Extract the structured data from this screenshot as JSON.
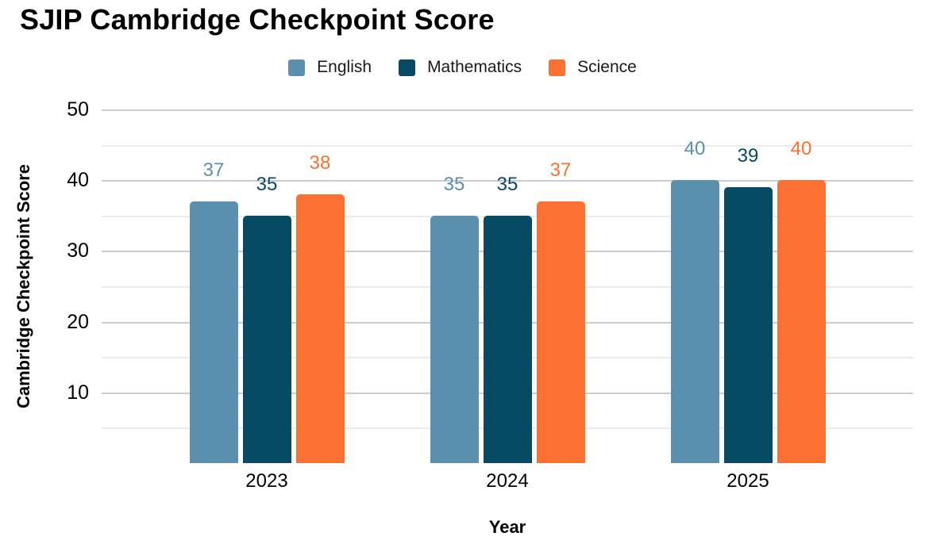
{
  "chart_data": {
    "type": "bar",
    "title": "SJIP Cambridge Checkpoint Score",
    "xlabel": "Year",
    "ylabel": "Cambridge Checkpoint Score",
    "categories": [
      "2023",
      "2024",
      "2025"
    ],
    "series": [
      {
        "name": "English",
        "color": "#5b90ae",
        "values": [
          37,
          35,
          40
        ]
      },
      {
        "name": "Mathematics",
        "color": "#074a63",
        "values": [
          35,
          35,
          39
        ]
      },
      {
        "name": "Science",
        "color": "#fd7033",
        "values": [
          38,
          37,
          40
        ]
      }
    ],
    "ylim": [
      0,
      50
    ],
    "yticks": [
      10,
      20,
      30,
      40,
      50
    ],
    "minor_gridline_step": 5,
    "grid": true,
    "legend_position": "top",
    "value_labels": true,
    "colors": {
      "grid_major": "#cccccc",
      "grid_minor": "#ebebeb",
      "text": "#000000"
    }
  }
}
